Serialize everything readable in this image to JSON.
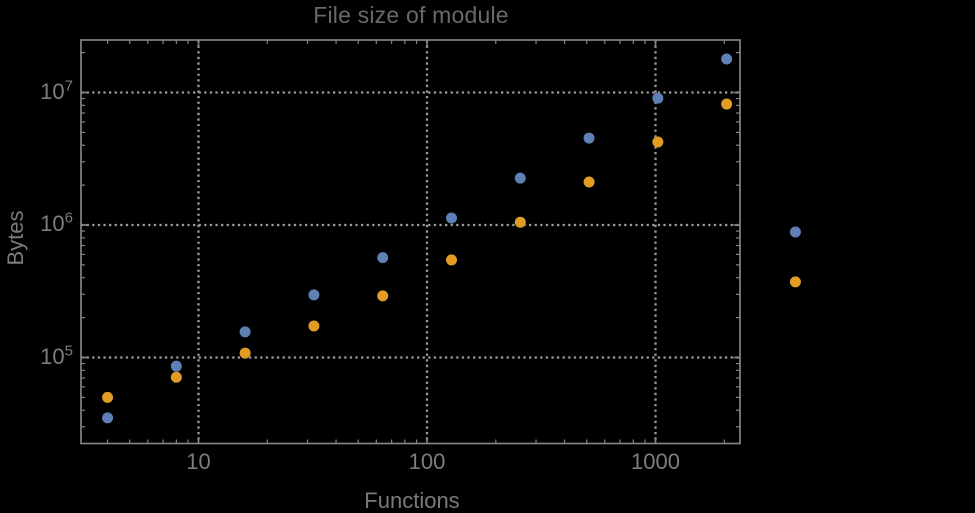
{
  "chart_data": {
    "type": "scatter",
    "title": "File size of module",
    "xlabel": "Functions",
    "ylabel": "Bytes",
    "x_scale": "log",
    "y_scale": "log",
    "grid": "dotted",
    "legend_position": "none",
    "x_range_approx": [
      3,
      2360
    ],
    "y_range_approx": [
      22400,
      25300000
    ],
    "x_ticks": [
      {
        "value": 10,
        "label": "10"
      },
      {
        "value": 100,
        "label": "100"
      },
      {
        "value": 1000,
        "label": "1000"
      }
    ],
    "y_ticks": [
      {
        "value": 100000,
        "base": "10",
        "exp": "5"
      },
      {
        "value": 1000000,
        "base": "10",
        "exp": "6"
      },
      {
        "value": 10000000,
        "base": "10",
        "exp": "7"
      }
    ],
    "x": [
      4,
      8,
      16,
      32,
      64,
      128,
      256,
      512,
      1024,
      2048,
      4096
    ],
    "series": [
      {
        "name": "series-1-blue",
        "color": "#5E81B5",
        "values": [
          35000,
          86000,
          156000,
          297000,
          567000,
          1130000,
          2260000,
          4530000,
          9070000,
          17900000,
          886000
        ]
      },
      {
        "name": "series-2-orange",
        "color": "#E19C24",
        "values": [
          50000,
          71000,
          108000,
          173000,
          292000,
          545000,
          1050000,
          2110000,
          4230000,
          8180000,
          372000
        ]
      }
    ],
    "colors": {
      "background": "#000000",
      "frame": "#848484",
      "grid": "#9a9a9a",
      "tick_label": "#7d7d7d",
      "title": "#696969",
      "axis_label": "#7a7a7a"
    }
  }
}
